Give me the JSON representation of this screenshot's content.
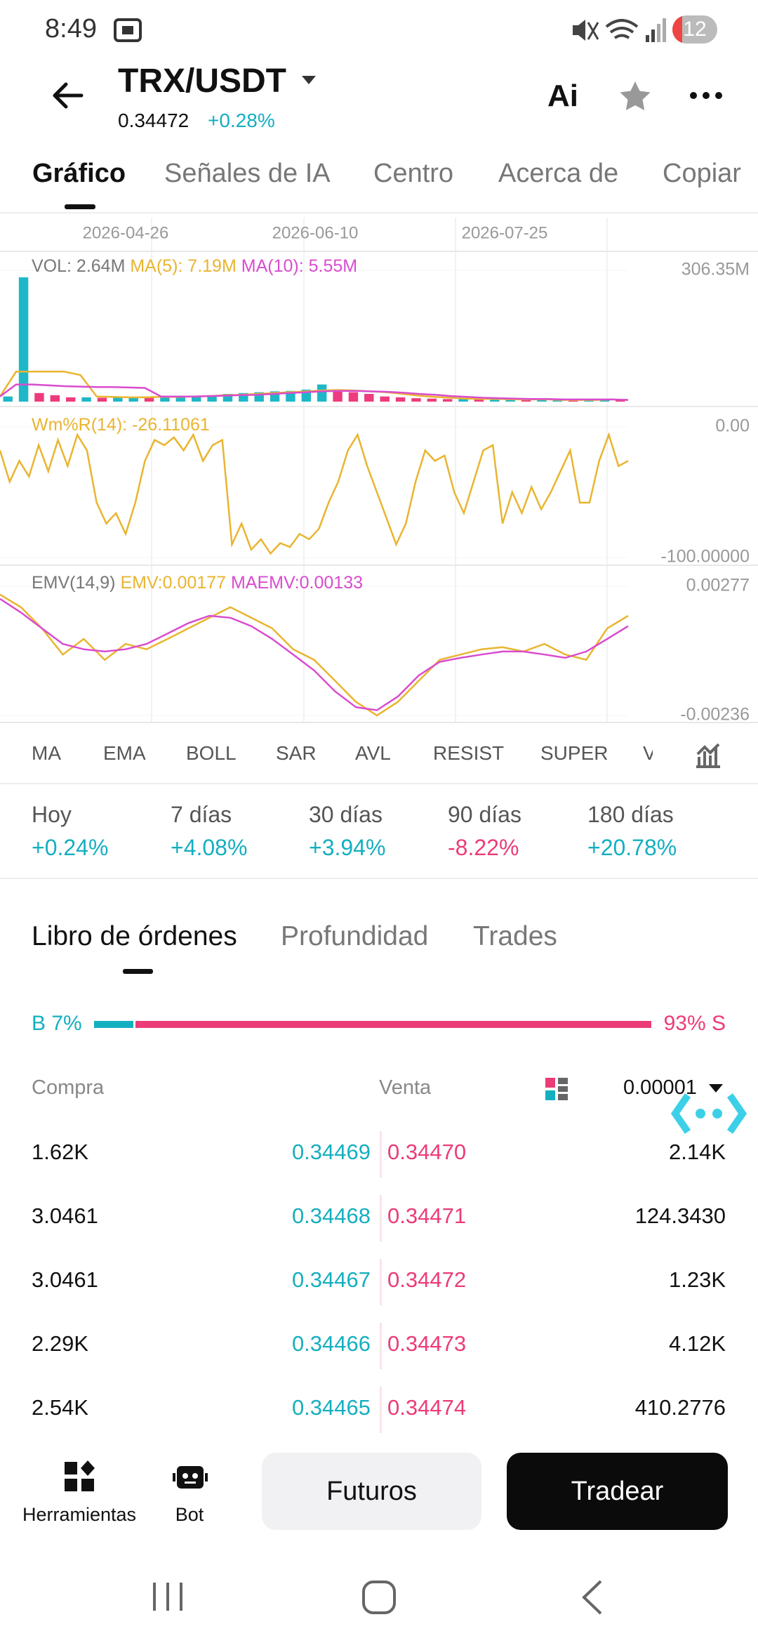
{
  "status_bar": {
    "time": "8:49",
    "battery": "12"
  },
  "header": {
    "pair": "TRX/USDT",
    "price": "0.34472",
    "change": "+0.28%",
    "ai": "Ai"
  },
  "tabs": [
    "Gráfico",
    "Señales de IA",
    "Centro",
    "Acerca de",
    "Copiar"
  ],
  "chart_dates": [
    "2026-04-26",
    "2026-06-10",
    "2026-07-25"
  ],
  "chart_data": [
    {
      "type": "bar",
      "ylim": [
        0,
        306.35
      ],
      "yticks": [
        {
          "value": 306.35,
          "label": "306.35M"
        }
      ],
      "grid": true,
      "series": [
        {
          "name": "VOL: 2.64M",
          "color": "#1eb7c8",
          "down_color": "#ee3b7d",
          "values": [
            12,
            290,
            20,
            15,
            10,
            10,
            9,
            10,
            11,
            10,
            12,
            12,
            14,
            15,
            18,
            20,
            22,
            24,
            25,
            28,
            40,
            26,
            22,
            18,
            12,
            10,
            8,
            7,
            6,
            6,
            5,
            5,
            5,
            4,
            4,
            5,
            4,
            4,
            6,
            3
          ]
        },
        {
          "name": "MA(5): 7.19M",
          "color": "#e9b530",
          "values": [
            12,
            70,
            70,
            70,
            70,
            62,
            12,
            11,
            10,
            10,
            11,
            11,
            12,
            13,
            15,
            16,
            18,
            20,
            22,
            24,
            26,
            27,
            26,
            24,
            22,
            18,
            14,
            11,
            9,
            7,
            6,
            6,
            5,
            5,
            5,
            4,
            4,
            4,
            5,
            4
          ]
        },
        {
          "name": "MA(10): 5.55M",
          "color": "#d94ccf",
          "values": [
            12,
            40,
            40,
            38,
            36,
            35,
            34,
            34,
            33,
            32,
            12,
            12,
            12,
            13,
            14,
            15,
            16,
            18,
            20,
            22,
            24,
            25,
            25,
            24,
            23,
            21,
            18,
            16,
            13,
            11,
            9,
            8,
            7,
            6,
            6,
            5,
            5,
            5,
            5,
            4
          ]
        }
      ]
    },
    {
      "type": "line",
      "ylim": [
        -100,
        0
      ],
      "yticks": [
        {
          "value": 0,
          "label": "0.00"
        },
        {
          "value": -100,
          "label": "-100.00000"
        }
      ],
      "grid": true,
      "series": [
        {
          "name": "Wm%R(14): -26.11061",
          "color": "#e9b530",
          "values": [
            -18,
            -42,
            -26,
            -38,
            -14,
            -34,
            -10,
            -30,
            -6,
            -18,
            -58,
            -74,
            -66,
            -82,
            -58,
            -26,
            -10,
            -14,
            -8,
            -18,
            -6,
            -26,
            -14,
            -10,
            -90,
            -74,
            -94,
            -86,
            -97,
            -89,
            -92,
            -82,
            -86,
            -78,
            -58,
            -42,
            -18,
            -6,
            -30,
            -50,
            -70,
            -90,
            -74,
            -42,
            -18,
            -26,
            -22,
            -50,
            -66,
            -42,
            -18,
            -14,
            -74,
            -50,
            -66,
            -46,
            -63,
            -50,
            -34,
            -18,
            -58,
            -58,
            -26,
            -6,
            -30,
            -26
          ]
        }
      ]
    },
    {
      "type": "line",
      "title": "EMV(14,9)",
      "ylim": [
        -0.00236,
        0.00277
      ],
      "yticks": [
        0.00277,
        -0.00236
      ],
      "grid": true,
      "series": [
        {
          "name": "EMV:0.00177",
          "color": "#e9b530",
          "values": [
            0.00244,
            0.00194,
            0.0011,
            6e-05,
            0.00068,
            -0.00015,
            0.00048,
            0.00027,
            0.00068,
            0.0011,
            0.00152,
            0.00194,
            0.00152,
            0.0011,
            0.00027,
            -0.00015,
            -0.00098,
            -0.00182,
            -0.00236,
            -0.00182,
            -0.00098,
            -0.00015,
            6e-05,
            0.00027,
            0.00035,
            0.00018,
            0.00048,
            6e-05,
            -0.00015,
            0.0011,
            0.0016
          ]
        },
        {
          "name": "MAEMV:0.00133",
          "color": "#d94ccf",
          "values": [
            0.00227,
            0.00173,
            0.0011,
            0.00048,
            0.00027,
            0.00018,
            0.00027,
            0.00048,
            0.00089,
            0.00131,
            0.0016,
            0.00152,
            0.00119,
            0.00068,
            6e-05,
            -0.00057,
            -0.0014,
            -0.00203,
            -0.00215,
            -0.00161,
            -0.00077,
            -0.00023,
            -7e-05,
            6e-05,
            0.00018,
            0.00018,
            6e-05,
            -7e-05,
            0.00018,
            0.00068,
            0.00119
          ]
        }
      ]
    }
  ],
  "indicators": [
    "MA",
    "EMA",
    "BOLL",
    "SAR",
    "AVL",
    "RESIST",
    "SUPER",
    "V"
  ],
  "periods": [
    {
      "label": "Hoy",
      "change": "+0.24%"
    },
    {
      "label": "7 días",
      "change": "+4.08%"
    },
    {
      "label": "30 días",
      "change": "+3.94%"
    },
    {
      "label": "90 días",
      "change": "-8.22%"
    },
    {
      "label": "180 días",
      "change": "+20.78%"
    }
  ],
  "orderbook": {
    "tabs": [
      "Libro de órdenes",
      "Profundidad",
      "Trades"
    ],
    "ratio": {
      "buy": {
        "value": 7,
        "label": "B 7%"
      },
      "sell": {
        "value": 93,
        "label": "93% S"
      }
    },
    "columns": {
      "buy": "Compra",
      "sell": "Venta",
      "precision": "0.00001"
    },
    "rows": [
      [
        "1.62K",
        "0.34469",
        "0.34470",
        "2.14K"
      ],
      [
        "3.0461",
        "0.34468",
        "0.34471",
        "124.3430"
      ],
      [
        "3.0461",
        "0.34467",
        "0.34472",
        "1.23K"
      ],
      [
        "2.29K",
        "0.34466",
        "0.34473",
        "4.12K"
      ],
      [
        "2.54K",
        "0.34465",
        "0.34474",
        "410.2776"
      ]
    ]
  },
  "bottom_bar": {
    "tools": "Herramientas",
    "bot": "Bot",
    "futures": "Futuros",
    "trade": "Tradear"
  }
}
